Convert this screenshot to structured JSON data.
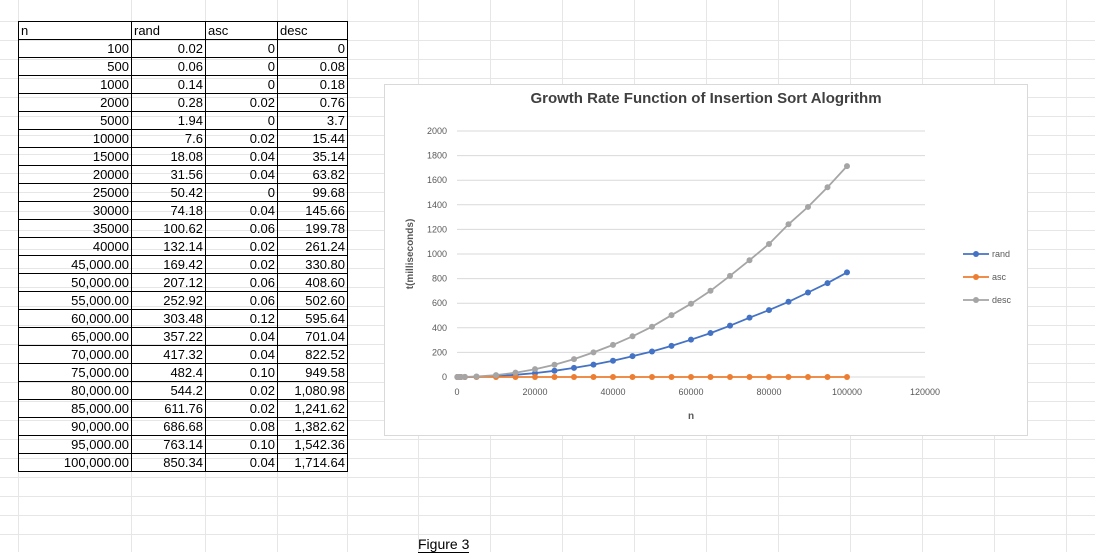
{
  "table": {
    "headers": [
      "n",
      "rand",
      "asc",
      "desc"
    ],
    "rows": [
      [
        "100",
        "0.02",
        "0",
        "0"
      ],
      [
        "500",
        "0.06",
        "0",
        "0.08"
      ],
      [
        "1000",
        "0.14",
        "0",
        "0.18"
      ],
      [
        "2000",
        "0.28",
        "0.02",
        "0.76"
      ],
      [
        "5000",
        "1.94",
        "0",
        "3.7"
      ],
      [
        "10000",
        "7.6",
        "0.02",
        "15.44"
      ],
      [
        "15000",
        "18.08",
        "0.04",
        "35.14"
      ],
      [
        "20000",
        "31.56",
        "0.04",
        "63.82"
      ],
      [
        "25000",
        "50.42",
        "0",
        "99.68"
      ],
      [
        "30000",
        "74.18",
        "0.04",
        "145.66"
      ],
      [
        "35000",
        "100.62",
        "0.06",
        "199.78"
      ],
      [
        "40000",
        "132.14",
        "0.02",
        "261.24"
      ],
      [
        "45,000.00",
        "169.42",
        "0.02",
        "330.80"
      ],
      [
        "50,000.00",
        "207.12",
        "0.06",
        "408.60"
      ],
      [
        "55,000.00",
        "252.92",
        "0.06",
        "502.60"
      ],
      [
        "60,000.00",
        "303.48",
        "0.12",
        "595.64"
      ],
      [
        "65,000.00",
        "357.22",
        "0.04",
        "701.04"
      ],
      [
        "70,000.00",
        "417.32",
        "0.04",
        "822.52"
      ],
      [
        "75,000.00",
        "482.4",
        "0.10",
        "949.58"
      ],
      [
        "80,000.00",
        "544.2",
        "0.02",
        "1,080.98"
      ],
      [
        "85,000.00",
        "611.76",
        "0.02",
        "1,241.62"
      ],
      [
        "90,000.00",
        "686.68",
        "0.08",
        "1,382.62"
      ],
      [
        "95,000.00",
        "763.14",
        "0.10",
        "1,542.36"
      ],
      [
        "100,000.00",
        "850.34",
        "0.04",
        "1,714.64"
      ]
    ]
  },
  "caption": "Figure 3",
  "chart_data": {
    "type": "scatter",
    "title": "Growth Rate Function of Insertion Sort Alogrithm",
    "xlabel": "n",
    "ylabel": "t(milliseconds)",
    "xlim": [
      0,
      120000
    ],
    "ylim": [
      0,
      2000
    ],
    "xticks": [
      "0",
      "20000",
      "40000",
      "60000",
      "80000",
      "100000",
      "120000"
    ],
    "yticks": [
      "0",
      "200",
      "400",
      "600",
      "800",
      "1000",
      "1200",
      "1400",
      "1600",
      "1800",
      "2000"
    ],
    "grid": true,
    "legend": "right",
    "x": [
      100,
      500,
      1000,
      2000,
      5000,
      10000,
      15000,
      20000,
      25000,
      30000,
      35000,
      40000,
      45000,
      50000,
      55000,
      60000,
      65000,
      70000,
      75000,
      80000,
      85000,
      90000,
      95000,
      100000
    ],
    "series": [
      {
        "name": "rand",
        "color": "#4472c4",
        "values": [
          0.02,
          0.06,
          0.14,
          0.28,
          1.94,
          7.6,
          18.08,
          31.56,
          50.42,
          74.18,
          100.62,
          132.14,
          169.42,
          207.12,
          252.92,
          303.48,
          357.22,
          417.32,
          482.4,
          544.2,
          611.76,
          686.68,
          763.14,
          850.34
        ]
      },
      {
        "name": "asc",
        "color": "#ed7d31",
        "values": [
          0,
          0,
          0,
          0.02,
          0,
          0.02,
          0.04,
          0.04,
          0,
          0.04,
          0.06,
          0.02,
          0.02,
          0.06,
          0.06,
          0.12,
          0.04,
          0.04,
          0.1,
          0.02,
          0.02,
          0.08,
          0.1,
          0.04
        ]
      },
      {
        "name": "desc",
        "color": "#a5a5a5",
        "values": [
          0,
          0.08,
          0.18,
          0.76,
          3.7,
          15.44,
          35.14,
          63.82,
          99.68,
          145.66,
          199.78,
          261.24,
          330.8,
          408.6,
          502.6,
          595.64,
          701.04,
          822.52,
          949.58,
          1080.98,
          1241.62,
          1382.62,
          1542.36,
          1714.64
        ]
      }
    ]
  }
}
